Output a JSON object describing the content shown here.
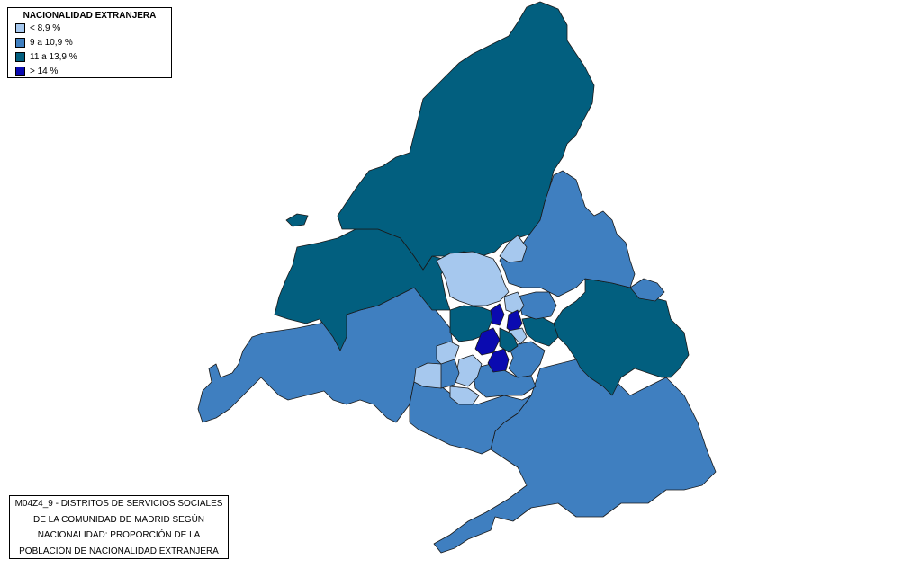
{
  "legend": {
    "title": "NACIONALIDAD EXTRANJERA",
    "items": [
      {
        "label": "< 8,9 %",
        "color": "#a6c8ee"
      },
      {
        "label": "9 a 10,9 %",
        "color": "#3f7fc0"
      },
      {
        "label": "11 a 13,9 %",
        "color": "#025f7f"
      },
      {
        "label": "> 14 %",
        "color": "#0a0ab0"
      }
    ]
  },
  "caption": {
    "lines": [
      "M04Z4_9 - DISTRITOS DE SERVICIOS SOCIALES",
      "DE LA COMUNIDAD DE MADRID SEGÚN",
      "NACIONALIDAD: PROPORCIÓN DE LA",
      "POBLACIÓN DE NACIONALIDAD EXTRANJERA"
    ]
  }
}
